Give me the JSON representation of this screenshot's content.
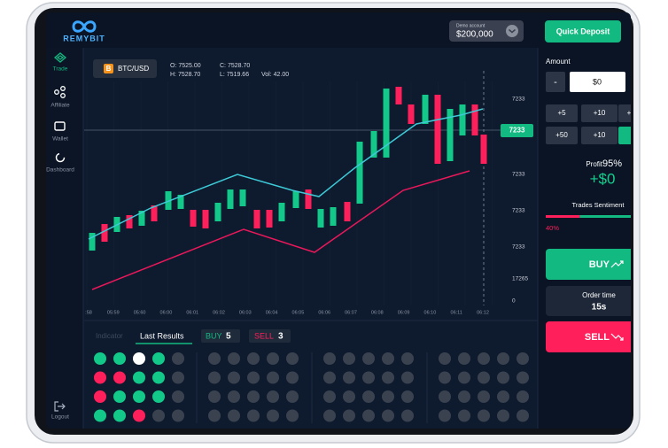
{
  "header": {
    "logo": "REMYBIT",
    "account_label": "Demo account",
    "balance": "$200,000",
    "deposit_button": "Quick Deposit"
  },
  "sidebar": {
    "items": [
      "Trade",
      "Affiliate",
      "Wallet",
      "Dashboard"
    ],
    "logout": "Logout"
  },
  "chart": {
    "pair": "BTC/USD",
    "ohlc": [
      "O: 7525.00",
      "H: 7528.70",
      "C: 7528.70",
      "L: 7519.66",
      "Vol: 42.00"
    ],
    "current_price": "7233",
    "price_labels": [
      "7233",
      "7233",
      "7233",
      "7233",
      "17265",
      "0"
    ],
    "time_labels": [
      ":58",
      "05:59",
      "05:60",
      "06:00",
      "06:01",
      "06:02",
      "06:03",
      "06:04",
      "06:05",
      "06:06",
      "06:07",
      "06:08",
      "06:09",
      "06:10",
      "06:11",
      "06:12"
    ]
  },
  "results": {
    "tabs": [
      "Indicator",
      "Last Results"
    ],
    "buy_label": "BUY",
    "buy_count": 5,
    "sell_label": "SELL",
    "sell_count": 3
  },
  "trade_panel": {
    "amount_label": "Amount",
    "minus": "-",
    "amount": "$0",
    "quick_amounts": [
      "+5",
      "+10",
      "+",
      "+50",
      "+10"
    ],
    "profit_label": "Profit",
    "profit_percent": "95%",
    "profit_value": "+$0",
    "sentiment_label": "Trades Sentiment",
    "sentiment_percent": "40%",
    "buy": "BUY",
    "order_time_label": "Order time",
    "order_time": "15s",
    "sell": "SELL"
  }
}
